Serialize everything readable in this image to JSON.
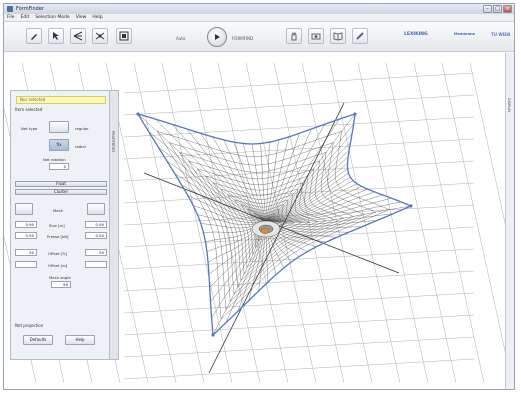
{
  "window": {
    "title": "FormFinder"
  },
  "menu": {
    "items": [
      "File",
      "Edit",
      "Selection Mode",
      "View",
      "Help"
    ]
  },
  "toolbar": {
    "left_tools": [
      "pencil-icon",
      "cursor-icon",
      "node-icon",
      "nodes-icon",
      "frame-icon"
    ],
    "label_left": "Auto",
    "label_play": "FORMFIND",
    "right_tools": [
      "hand-icon",
      "camera-icon",
      "book-icon",
      "brush-icon"
    ],
    "logo_a": "LEXIKING",
    "logo_b": "Membrane",
    "logo_c": "TU WIEN"
  },
  "side_tabs": {
    "properties": "PROPERTIES",
    "display": "DISPLAY"
  },
  "panel": {
    "status": "Nur selected",
    "section_item": "Item selected",
    "net_type_label": "Net type",
    "net_type_regular": "regular",
    "net_type_radial": "radial",
    "btn_net_regular": "",
    "btn_net_radial": "fix",
    "net_rotation_label": "Net rotation",
    "net_rotation_value": "0",
    "bar_float": "Float",
    "bar_cluster": "Cluster",
    "mesh_label": "Mesh",
    "size_label": "Size [m]",
    "size_left": "0.90",
    "size_right": "0.90",
    "prestress_label": "Presse [kN]",
    "prestress_left": "0.50",
    "prestress_right": "0.50",
    "offset_label": "Offset [%]",
    "offset_left": "50",
    "offset_right": "50",
    "offset2_label": "Offset [m]",
    "mesh_angle_label": "Mesh angle",
    "mesh_angle_value": "90",
    "section_projection": "Net projection",
    "btn_defaults": "Defaults",
    "btn_help": "Help"
  },
  "colors": {
    "edge": "#5577bb",
    "mesh": "#444444",
    "grid": "#b0b0b0",
    "status": "#fff9b0"
  }
}
